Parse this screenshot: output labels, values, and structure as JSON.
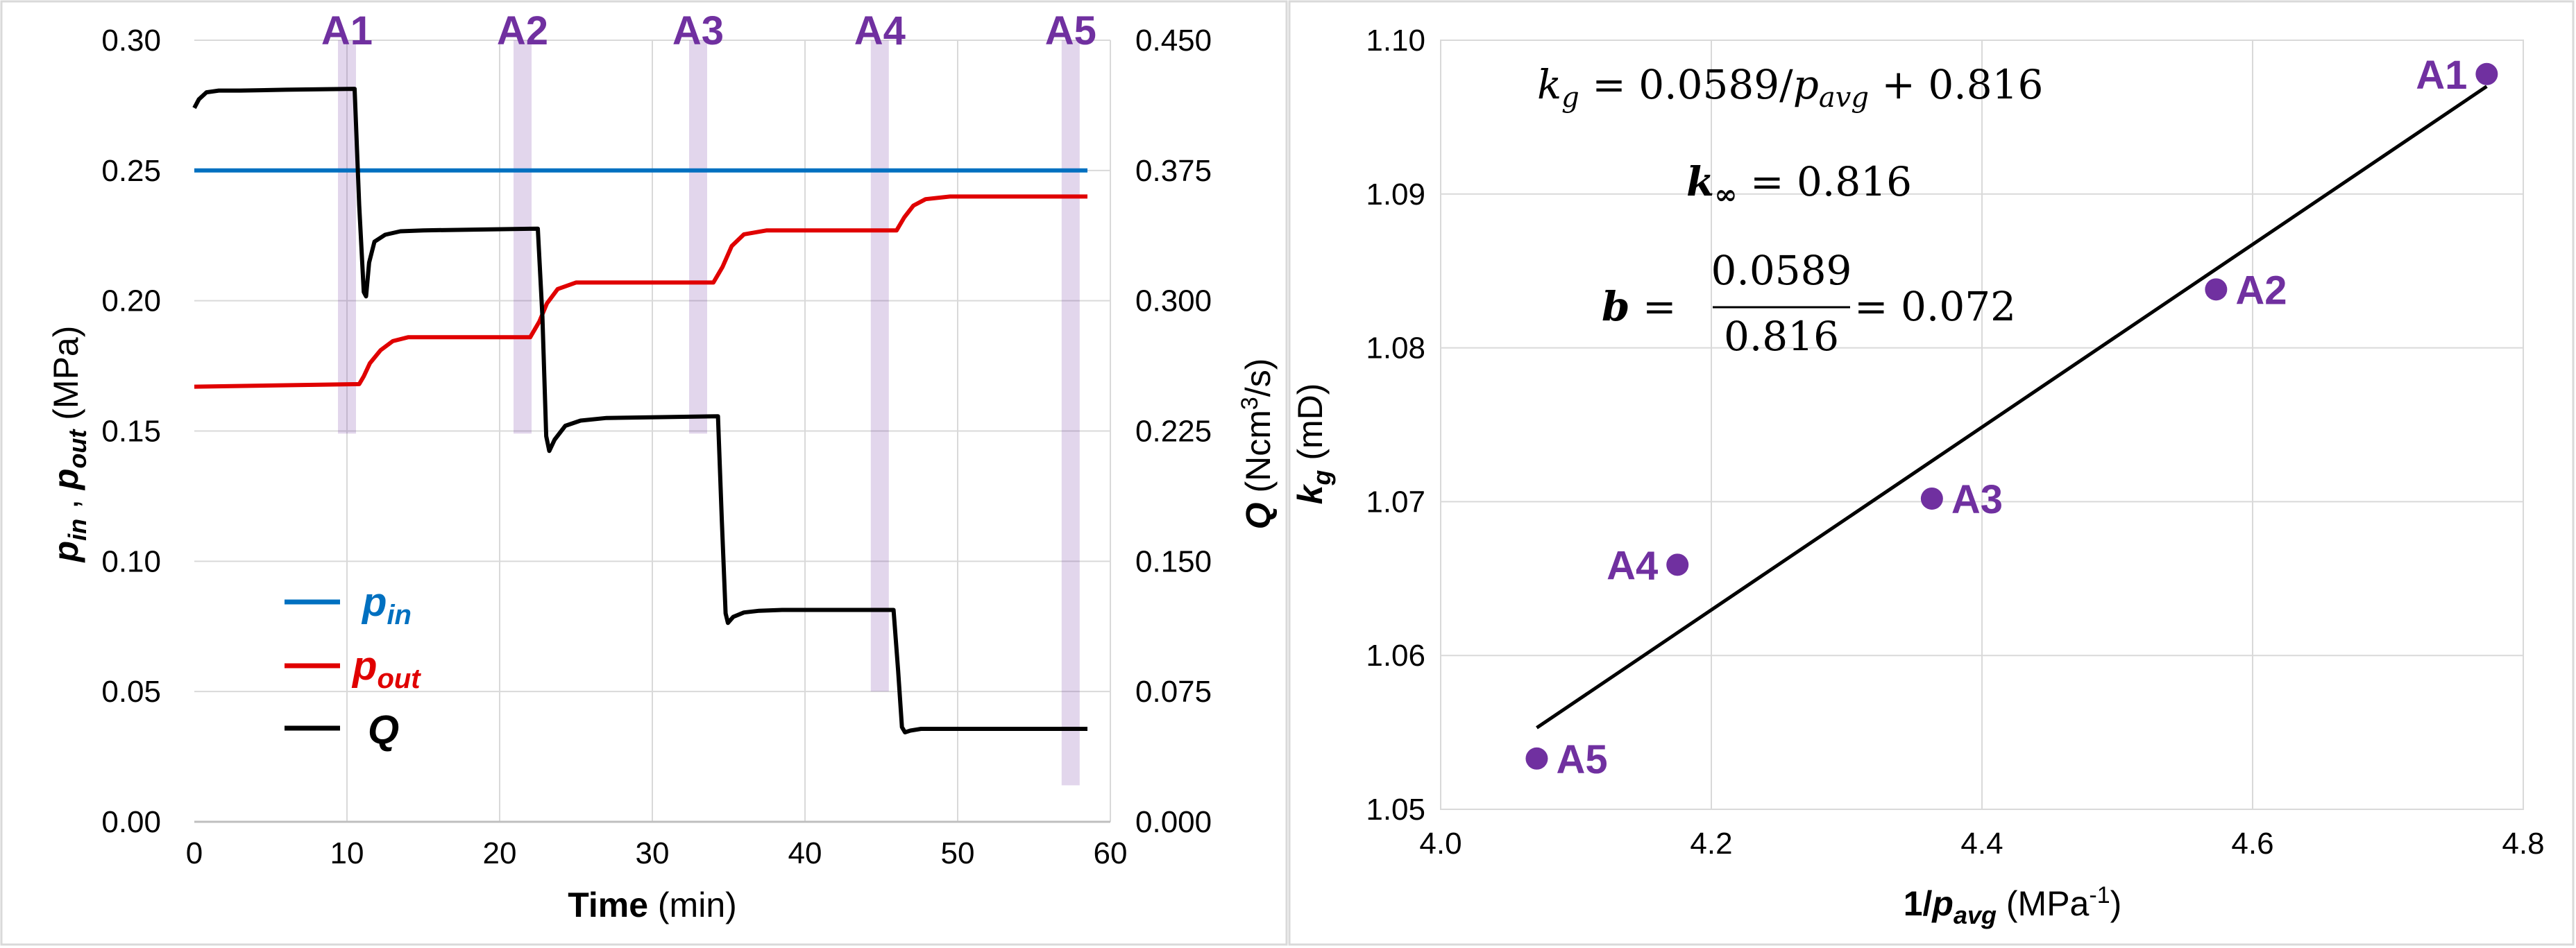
{
  "chart_data": [
    {
      "type": "line",
      "title": "",
      "xlabel": {
        "bold": "Time",
        "unit": " (min)"
      },
      "ylabel_left": {
        "p1": "p",
        "s1": "in",
        "sep": " , ",
        "p2": "p",
        "s2": "out",
        "unit": " (MPa)"
      },
      "ylabel_right": {
        "sym": "Q",
        "unit_a": " (Ncm",
        "sup": "3",
        "unit_b": "/s)"
      },
      "xlim": [
        0,
        60
      ],
      "ylim_left": [
        0,
        0.3
      ],
      "ylim_right": [
        0,
        0.45
      ],
      "x_ticks": [
        "0",
        "10",
        "20",
        "30",
        "40",
        "50",
        "60"
      ],
      "y_left_ticks": [
        "0.00",
        "0.05",
        "0.10",
        "0.15",
        "0.20",
        "0.25",
        "0.30"
      ],
      "y_right_ticks": [
        "0.000",
        "0.075",
        "0.150",
        "0.225",
        "0.300",
        "0.375",
        "0.450"
      ],
      "phases": [
        {
          "label": "A1",
          "x": 10.0,
          "ymin": 0.149,
          "ymax": 0.3
        },
        {
          "label": "A2",
          "x": 21.5,
          "ymin": 0.149,
          "ymax": 0.3
        },
        {
          "label": "A3",
          "x": 33.0,
          "ymin": 0.149,
          "ymax": 0.3
        },
        {
          "label": "A4",
          "x": 44.9,
          "ymin": 0.05,
          "ymax": 0.3
        },
        {
          "label": "A5",
          "x": 57.4,
          "ymin": 0.014,
          "ymax": 0.3
        }
      ],
      "series": [
        {
          "name": "p_in",
          "axis": "left",
          "color": "#0070C0",
          "x": [
            0,
            58.5
          ],
          "y": [
            0.25,
            0.25
          ]
        },
        {
          "name": "p_out",
          "axis": "left",
          "color": "#E00000",
          "x": [
            0,
            10.8,
            11.1,
            11.5,
            12.2,
            13,
            14,
            22,
            22.6,
            23.1,
            23.8,
            25,
            34,
            34.6,
            35.2,
            36,
            37.5,
            46,
            46.5,
            47.1,
            47.9,
            49.5,
            58.5
          ],
          "y": [
            0.167,
            0.168,
            0.171,
            0.176,
            0.181,
            0.1845,
            0.186,
            0.186,
            0.192,
            0.199,
            0.2045,
            0.207,
            0.207,
            0.213,
            0.221,
            0.2255,
            0.227,
            0.227,
            0.232,
            0.2365,
            0.239,
            0.24,
            0.24
          ]
        },
        {
          "name": "Q",
          "axis": "right",
          "color": "#000000",
          "x": [
            0,
            0.3,
            0.8,
            1.6,
            3,
            6,
            10.5,
            10.8,
            11.1,
            11.25,
            11.45,
            11.8,
            12.5,
            13.5,
            15,
            22.5,
            22.8,
            23.05,
            23.25,
            23.6,
            24.3,
            25.3,
            27,
            34.3,
            34.55,
            34.8,
            34.95,
            35.3,
            36,
            37,
            38.5,
            45.8,
            46.1,
            46.35,
            46.55,
            46.9,
            47.6,
            48.5,
            58.5
          ],
          "y": [
            0.411,
            0.416,
            0.42,
            0.421,
            0.421,
            0.4215,
            0.422,
            0.355,
            0.305,
            0.3025,
            0.322,
            0.334,
            0.338,
            0.34,
            0.3405,
            0.3415,
            0.291,
            0.222,
            0.2135,
            0.22,
            0.228,
            0.231,
            0.2325,
            0.2335,
            0.174,
            0.12,
            0.1145,
            0.118,
            0.1205,
            0.1215,
            0.122,
            0.122,
            0.087,
            0.0545,
            0.0515,
            0.0525,
            0.0535,
            0.0535,
            0.0535
          ]
        }
      ],
      "legend": [
        {
          "sym": "p",
          "sub": "in",
          "color": "#0070C0"
        },
        {
          "sym": "p",
          "sub": "out",
          "color": "#E00000"
        },
        {
          "sym": "Q",
          "sub": "",
          "color": "#000000"
        }
      ]
    },
    {
      "type": "scatter",
      "title": "",
      "xlabel": {
        "a": "1/",
        "p": "p",
        "sub": "avg",
        "unit_a": " (MPa",
        "sup": "-1",
        "unit_b": ")"
      },
      "ylabel": {
        "sym": "k",
        "sub": "g",
        "unit": " (mD)"
      },
      "xlim": [
        4.0,
        4.8
      ],
      "ylim": [
        1.05,
        1.1
      ],
      "x_ticks": [
        "4.0",
        "4.2",
        "4.4",
        "4.6",
        "4.8"
      ],
      "y_ticks": [
        "1.05",
        "1.06",
        "1.07",
        "1.08",
        "1.09",
        "1.10"
      ],
      "points": [
        {
          "label": "A1",
          "x": 4.773,
          "y": 1.0978,
          "label_side": "left"
        },
        {
          "label": "A2",
          "x": 4.573,
          "y": 1.0838,
          "label_side": "right"
        },
        {
          "label": "A3",
          "x": 4.363,
          "y": 1.0702,
          "label_side": "right"
        },
        {
          "label": "A4",
          "x": 4.175,
          "y": 1.0659,
          "label_side": "left"
        },
        {
          "label": "A5",
          "x": 4.071,
          "y": 1.0533,
          "label_side": "right"
        }
      ],
      "trendline": {
        "x": [
          4.071,
          4.773
        ],
        "y": [
          1.0553,
          1.097
        ]
      },
      "equation": {
        "line1": {
          "k": "k",
          "ksub": "g",
          "eq": " = 0.0589/",
          "p": "p",
          "psub": "avg",
          "tail": " + 0.816"
        },
        "line2": {
          "k": "k",
          "ksub": "∞",
          "tail": " = 0.816"
        },
        "line3": {
          "b": "b",
          "eq": " = ",
          "num": "0.0589",
          "den": "0.816",
          "tail": " = 0.072"
        }
      }
    }
  ]
}
